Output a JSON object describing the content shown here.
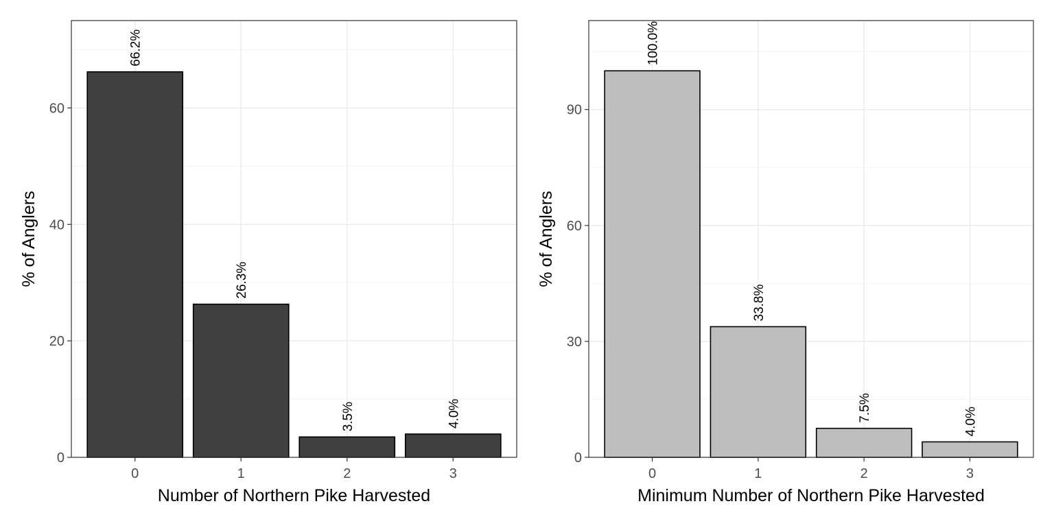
{
  "chart_data": [
    {
      "type": "bar",
      "categories": [
        "0",
        "1",
        "2",
        "3"
      ],
      "values": [
        66.2,
        26.3,
        3.5,
        4.0
      ],
      "value_labels": [
        "66.2%",
        "26.3%",
        "3.5%",
        "4.0%"
      ],
      "xlabel": "Number of Northern Pike Harvested",
      "ylabel": "% of Anglers",
      "yticks": [
        0,
        20,
        40,
        60
      ],
      "ytick_labels": [
        "0",
        "20",
        "40",
        "60"
      ],
      "ylim": [
        0,
        75
      ],
      "bar_color": "#404040",
      "grid": true
    },
    {
      "type": "bar",
      "categories": [
        "0",
        "1",
        "2",
        "3"
      ],
      "values": [
        100.0,
        33.8,
        7.5,
        4.0
      ],
      "value_labels": [
        "100.0%",
        "33.8%",
        "7.5%",
        "4.0%"
      ],
      "xlabel": "Minimum Number of Northern Pike Harvested",
      "ylabel": "% of Anglers",
      "yticks": [
        0,
        30,
        60,
        90
      ],
      "ytick_labels": [
        "0",
        "30",
        "60",
        "90"
      ],
      "ylim": [
        0,
        113
      ],
      "bar_color": "#bebebe",
      "grid": true
    }
  ]
}
